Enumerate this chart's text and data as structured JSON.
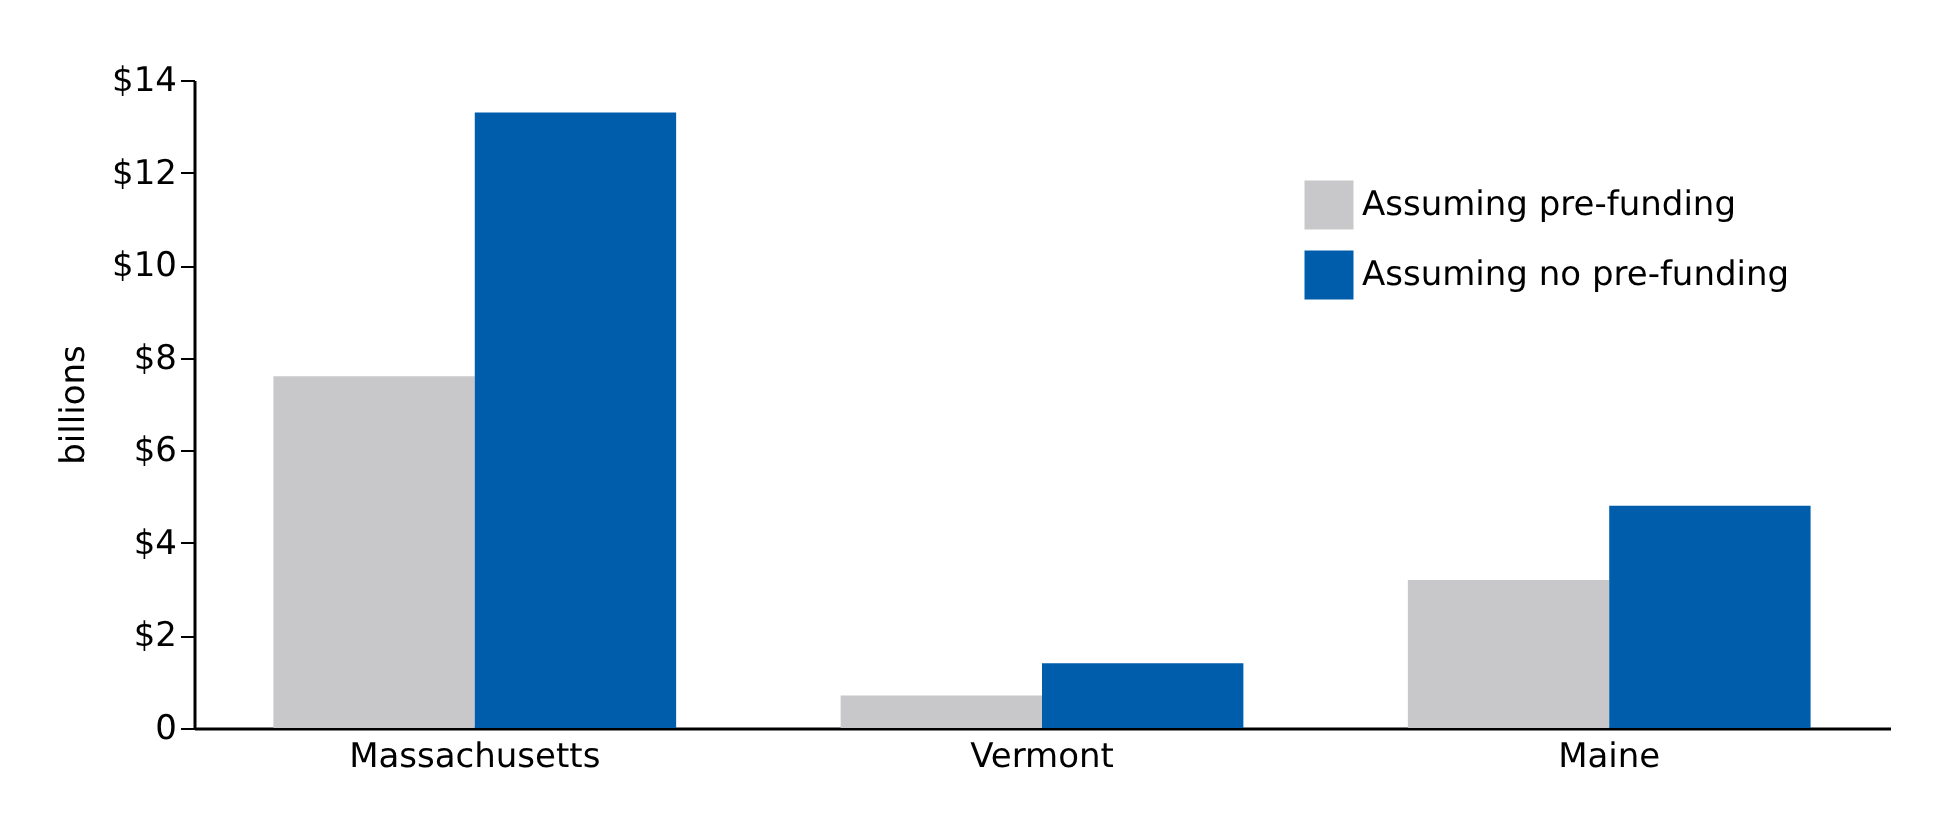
{
  "chart_data": {
    "type": "bar",
    "ylabel": "billions",
    "categories": [
      "Massachusetts",
      "Vermont",
      "Maine"
    ],
    "series": [
      {
        "name": "Assuming pre-funding",
        "color": "#c8c8ca",
        "values": [
          7.6,
          0.7,
          3.2
        ]
      },
      {
        "name": "Assuming no pre-funding",
        "color": "#005dab",
        "values": [
          13.3,
          1.4,
          4.8
        ]
      }
    ],
    "ylim": [
      0,
      14
    ],
    "yticks": [
      0,
      {
        "value": 2,
        "label": "$2"
      },
      {
        "value": 4,
        "label": "$4"
      },
      {
        "value": 6,
        "label": "$6"
      },
      {
        "value": 8,
        "label": "$8"
      },
      {
        "value": 10,
        "label": "$10"
      },
      {
        "value": 12,
        "label": "$12"
      },
      {
        "value": 14,
        "label": "$14"
      }
    ],
    "grid": false,
    "legend": "top right"
  }
}
